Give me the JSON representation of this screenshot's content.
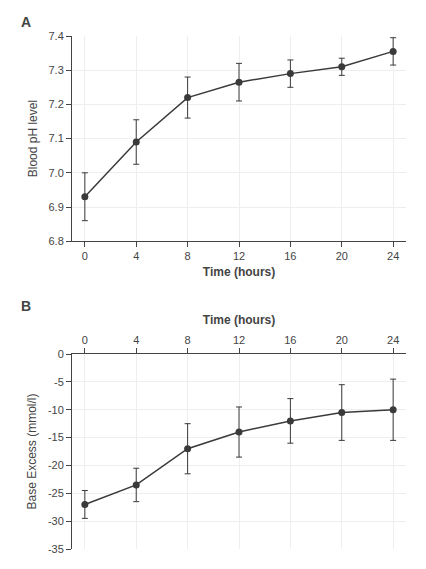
{
  "chart_data": [
    {
      "type": "line",
      "title": "A",
      "x": [
        0,
        4,
        8,
        12,
        16,
        20,
        24
      ],
      "values": [
        6.93,
        7.09,
        7.22,
        7.265,
        7.29,
        7.31,
        7.355
      ],
      "error": [
        0.07,
        0.065,
        0.06,
        0.055,
        0.04,
        0.025,
        0.04
      ],
      "xlabel": "Time (hours)",
      "ylabel": "Blood pH level",
      "xlim": [
        -1,
        25
      ],
      "xticks": [
        0,
        4,
        8,
        12,
        16,
        20,
        24
      ],
      "ylim": [
        6.8,
        7.4
      ],
      "yticks": [
        6.8,
        6.9,
        {
          "value": 7.0,
          "label": "7.0"
        },
        7.1,
        7.2,
        7.3,
        7.4
      ],
      "color": "#3a3a3a",
      "marker": "circle"
    },
    {
      "type": "line",
      "title": "B",
      "x": [
        0,
        4,
        8,
        12,
        16,
        20,
        24
      ],
      "values": [
        -27.0,
        -23.5,
        -17.0,
        -14.0,
        -12.0,
        -10.5,
        -10.0
      ],
      "error": [
        2.5,
        3.0,
        4.5,
        4.5,
        4.0,
        5.0,
        5.5
      ],
      "xlabel": "Time (hours)",
      "ylabel": "Base Excess (mmol/l)",
      "xlim": [
        -1,
        25
      ],
      "xticks": [
        0,
        4,
        8,
        12,
        16,
        20,
        24
      ],
      "ylim": [
        -35,
        0
      ],
      "yticks": [
        -35,
        -30,
        -25,
        -20,
        -15,
        -10,
        -5,
        0
      ],
      "color": "#3a3a3a",
      "marker": "circle"
    }
  ]
}
